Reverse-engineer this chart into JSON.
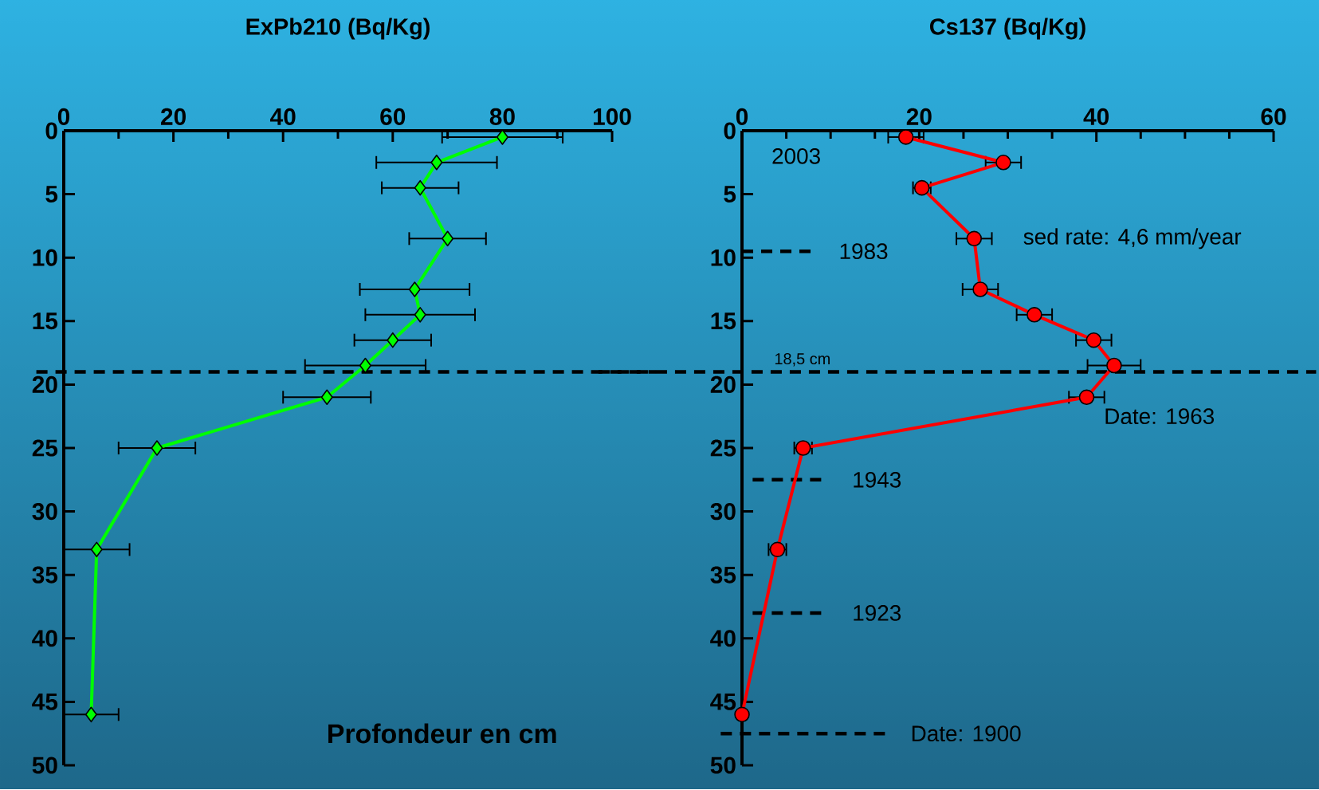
{
  "chart_data": [
    {
      "type": "line",
      "title": "ExPb210 (Bq/Kg)",
      "ylabel": "Profondeur en cm",
      "xlim": [
        0,
        100
      ],
      "xticks": [
        0,
        20,
        40,
        60,
        80,
        100
      ],
      "ylim": [
        50,
        0
      ],
      "yticks": [
        0,
        5,
        10,
        15,
        20,
        25,
        30,
        35,
        40,
        45,
        50
      ],
      "marker": "diamond",
      "line_style": "solid",
      "series": [
        {
          "color": "#00ff00",
          "x": [
            80,
            68,
            65,
            70,
            64,
            65,
            60,
            55,
            48,
            17,
            6,
            5
          ],
          "values": [
            0.5,
            2.5,
            4.5,
            8.5,
            12.5,
            14.5,
            16.5,
            18.5,
            21,
            25,
            33,
            46
          ],
          "xerrors": [
            11,
            11,
            7,
            7,
            10,
            10,
            7,
            11,
            8,
            7,
            6,
            5
          ]
        }
      ],
      "ref_lines": [
        {
          "axis": "y",
          "value": 19,
          "line_style": "dashed"
        }
      ]
    },
    {
      "type": "line",
      "title": "Cs137 (Bq/Kg)",
      "xlim": [
        0,
        60
      ],
      "xticks": [
        0,
        20,
        40,
        60
      ],
      "ylim": [
        50,
        0
      ],
      "yticks": [
        0,
        5,
        10,
        15,
        20,
        25,
        30,
        35,
        40,
        45,
        50
      ],
      "marker": "circle",
      "line_style": "solid",
      "series": [
        {
          "color": "#ff0000",
          "x": [
            18.5,
            29.5,
            20.3,
            26.2,
            26.9,
            33,
            39.7,
            42,
            38.9,
            6.9,
            4,
            0
          ],
          "values": [
            0.5,
            2.5,
            4.5,
            8.5,
            12.5,
            14.5,
            16.5,
            18.5,
            21,
            25,
            33,
            46
          ],
          "xerrors": [
            2,
            2,
            1,
            2,
            2,
            2,
            2,
            3,
            2,
            1,
            1,
            null
          ]
        }
      ],
      "ref_lines": [
        {
          "axis": "y",
          "value": 19,
          "label": "18,5 cm",
          "line_style": "dashed"
        },
        {
          "axis": "y",
          "value": 9.5,
          "line_style": "dashed"
        },
        {
          "axis": "y",
          "value": 27.5,
          "line_style": "dashed"
        },
        {
          "axis": "y",
          "value": 38,
          "line_style": "dashed"
        },
        {
          "axis": "y",
          "value": 47.5,
          "line_style": "dashed"
        }
      ],
      "annotations": [
        "2003",
        "sed rate: 4,6 mm/year",
        "Date: 1963",
        "1983",
        "1943",
        "1923",
        "Date: 1900"
      ]
    }
  ]
}
